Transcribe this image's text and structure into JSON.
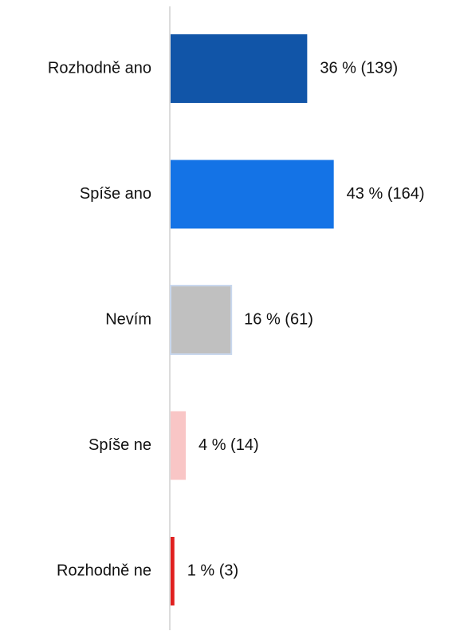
{
  "chart_data": {
    "type": "bar",
    "orientation": "horizontal",
    "categories": [
      "Rozhodně ano",
      "Spíše ano",
      "Nevím",
      "Spíše ne",
      "Rozhodně ne"
    ],
    "values": [
      36,
      43,
      16,
      4,
      1
    ],
    "value_labels": [
      "36 % (139)",
      "43 % (164)",
      "16 % (61)",
      "4 % (14)",
      "1 % (3)"
    ],
    "colors": [
      "#1155a8",
      "#1473e6",
      "#c0c0c0",
      "#f9c6c6",
      "#e0201f"
    ]
  }
}
